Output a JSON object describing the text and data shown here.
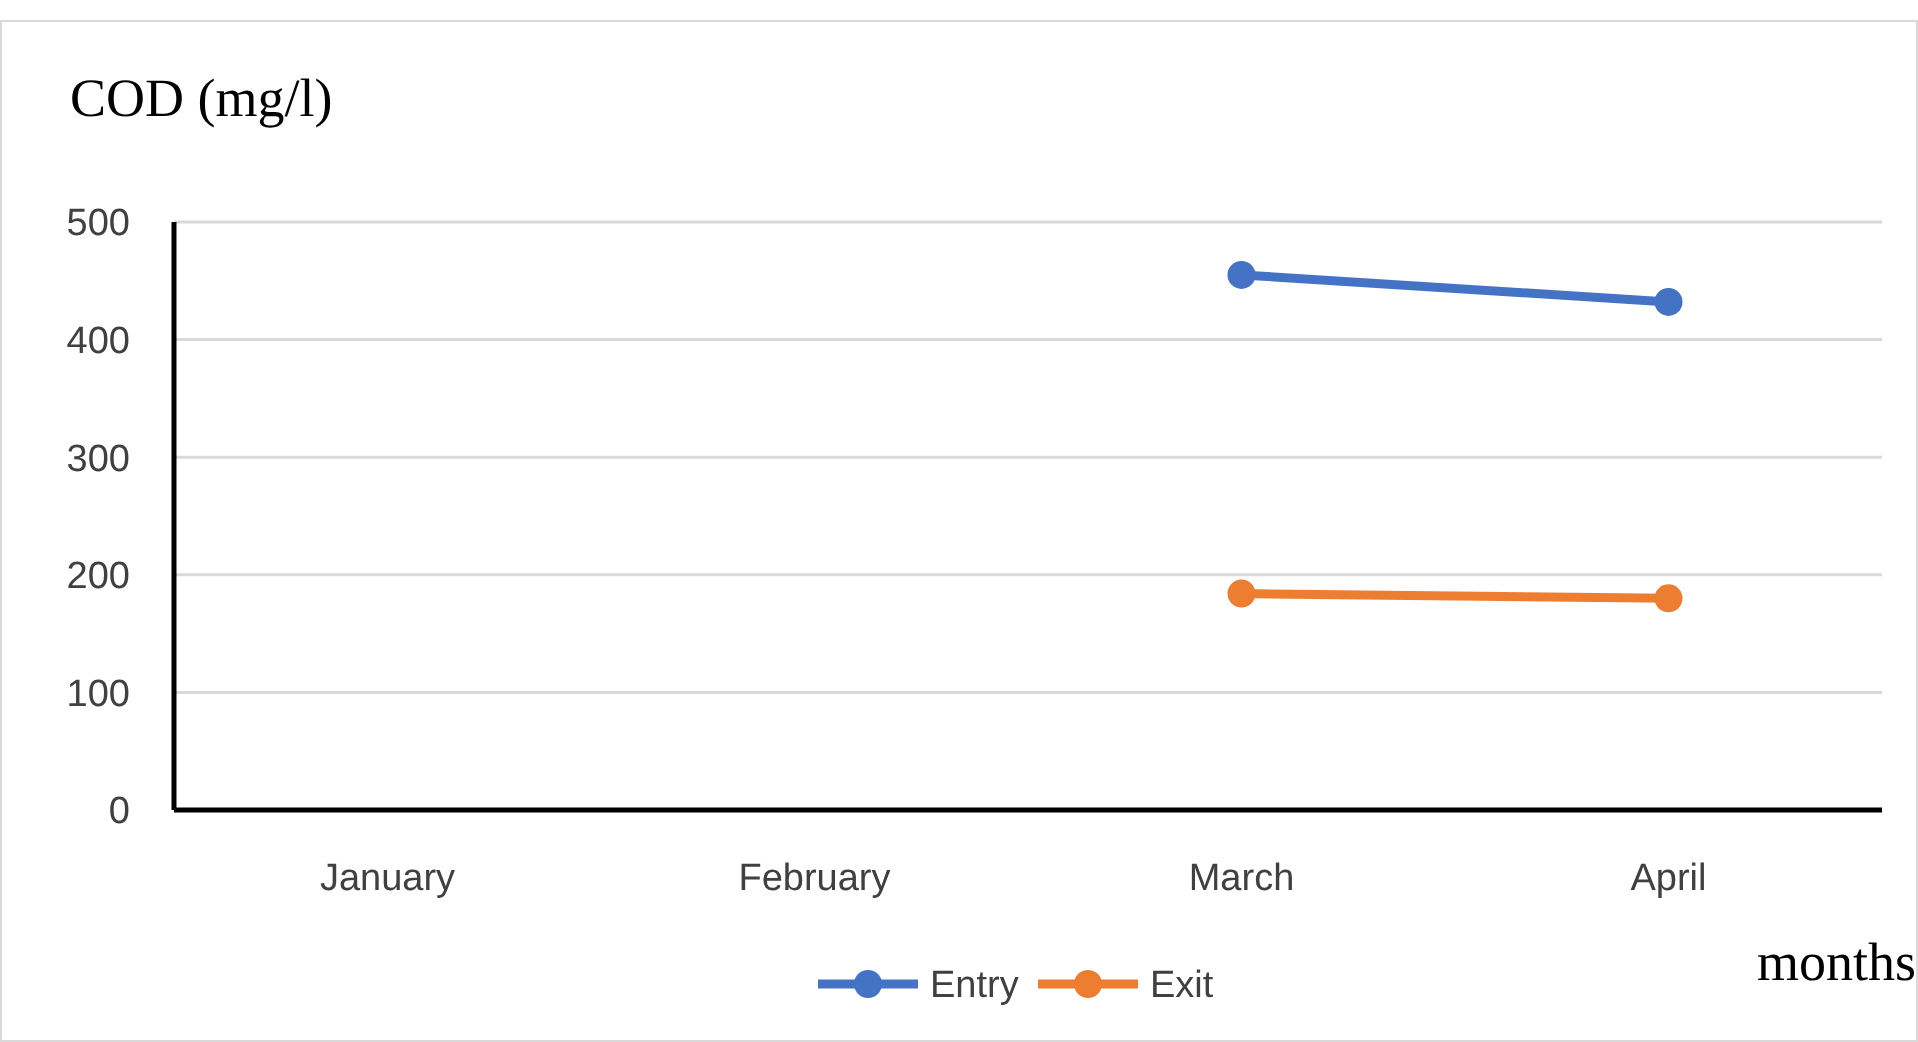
{
  "chart_data": {
    "type": "line",
    "ylabel": "COD (mg/l)",
    "xlabel": "months",
    "categories": [
      "January",
      "February",
      "March",
      "April"
    ],
    "series": [
      {
        "name": "Entry",
        "color": "#4472c4",
        "values": [
          null,
          null,
          455,
          432
        ]
      },
      {
        "name": "Exit",
        "color": "#ed7d31",
        "values": [
          null,
          null,
          184,
          180
        ]
      }
    ],
    "ylim": [
      0,
      500
    ],
    "yticks": [
      0,
      100,
      200,
      300,
      400,
      500
    ],
    "grid": "y",
    "legend": "bottom",
    "marker": "circle",
    "line_style": "solid"
  }
}
